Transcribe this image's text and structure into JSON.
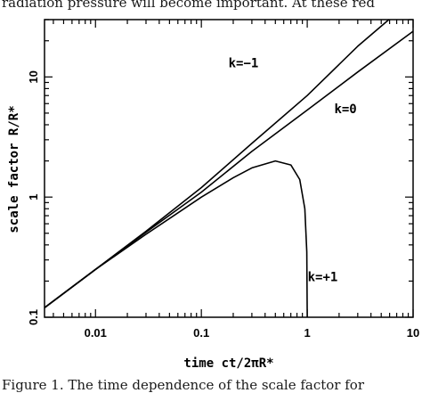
{
  "page": {
    "top_text": "radiation pressure will become important. At these red",
    "caption_text": "Figure 1. The time dependence of the scale factor for"
  },
  "chart_data": {
    "type": "line",
    "xlabel": "time ct/2πR*",
    "ylabel": "scale factor R/R*",
    "x_scale": "log",
    "y_scale": "log",
    "xlim": [
      0.0033,
      10
    ],
    "ylim": [
      0.1,
      30
    ],
    "x_ticks": [
      {
        "value": 0.01,
        "label": "0.01"
      },
      {
        "value": 0.1,
        "label": "0.1"
      },
      {
        "value": 1,
        "label": "1"
      },
      {
        "value": 10,
        "label": "10"
      }
    ],
    "y_ticks": [
      {
        "value": 0.1,
        "label": "0.1"
      },
      {
        "value": 1,
        "label": "1"
      },
      {
        "value": 10,
        "label": "10"
      }
    ],
    "grid": false,
    "series": [
      {
        "name": "k=-1",
        "x": [
          0.0033,
          0.01,
          0.03,
          0.1,
          0.3,
          1,
          3,
          5.9
        ],
        "y": [
          0.12,
          0.25,
          0.52,
          1.2,
          2.8,
          7.0,
          18,
          30
        ]
      },
      {
        "name": "k=0",
        "x": [
          0.0033,
          0.01,
          0.03,
          0.1,
          0.3,
          1,
          3,
          10
        ],
        "y": [
          0.12,
          0.25,
          0.51,
          1.1,
          2.4,
          5.3,
          11,
          24
        ]
      },
      {
        "name": "k=+1",
        "x": [
          0.0033,
          0.01,
          0.03,
          0.1,
          0.2,
          0.3,
          0.5,
          0.7,
          0.85,
          0.95,
          0.99,
          1.0
        ],
        "y": [
          0.12,
          0.25,
          0.49,
          1.0,
          1.45,
          1.75,
          2.0,
          1.85,
          1.4,
          0.8,
          0.35,
          0.1
        ]
      }
    ],
    "annotations": [
      {
        "text": "k=−1",
        "x": 0.25,
        "y": 12
      },
      {
        "text": "k=0",
        "x": 2.3,
        "y": 5.0
      },
      {
        "text": "k=+1",
        "x": 1.4,
        "y": 0.2
      }
    ]
  }
}
